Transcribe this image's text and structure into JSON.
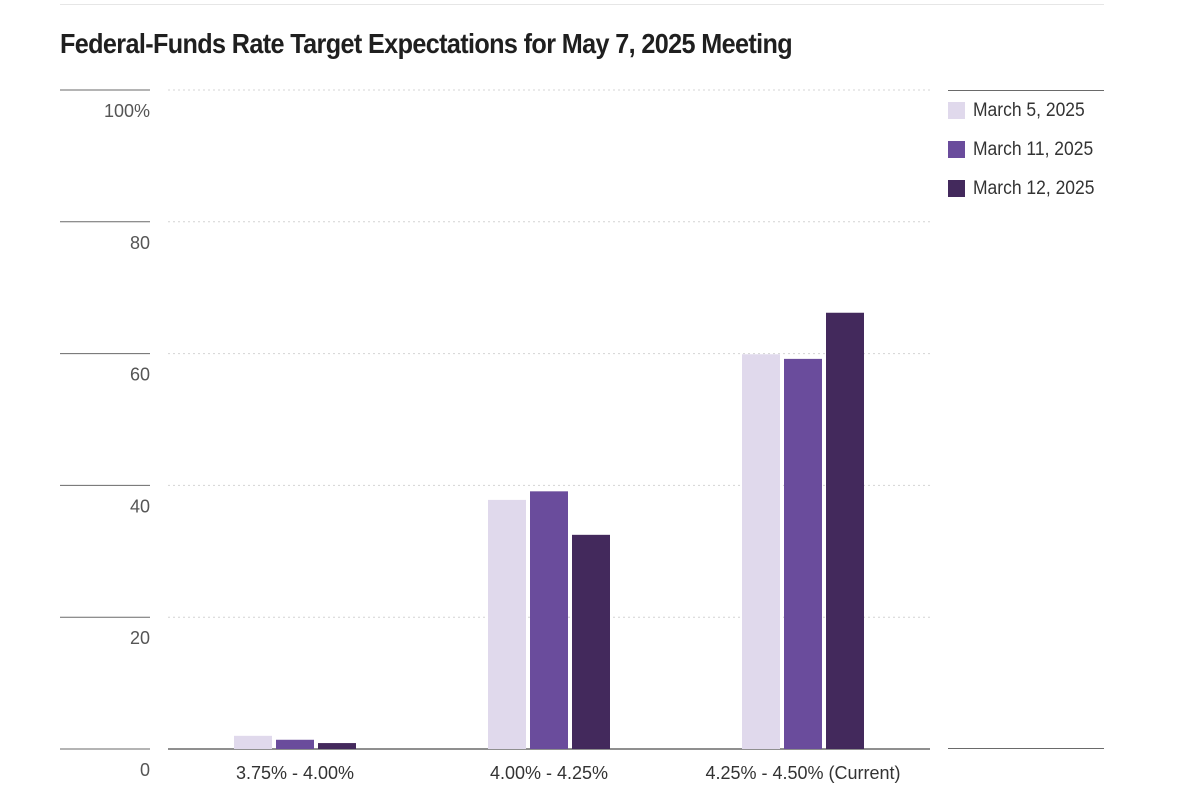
{
  "title": "Federal-Funds Rate Target Expectations for May 7, 2025 Meeting",
  "chart_data": {
    "type": "bar",
    "title": "Federal-Funds Rate Target Expectations for May 7, 2025 Meeting",
    "categories": [
      "3.75% - 4.00%",
      "4.00% - 4.25%",
      "4.25% - 4.50% (Current)"
    ],
    "series": [
      {
        "name": "March 5, 2025",
        "color": "#e0d9ec",
        "values": [
          2.0,
          37.8,
          59.9
        ]
      },
      {
        "name": "March 11, 2025",
        "color": "#6a4c9c",
        "values": [
          1.4,
          39.1,
          59.2
        ]
      },
      {
        "name": "March 12, 2025",
        "color": "#43295c",
        "values": [
          0.9,
          32.5,
          66.2
        ]
      }
    ],
    "yticks": [
      0,
      20,
      40,
      60,
      80,
      100
    ],
    "ytick_labels": [
      "0",
      "20",
      "40",
      "60",
      "80",
      "100%"
    ],
    "ylim": [
      0,
      100
    ],
    "xlabel": "",
    "ylabel": "",
    "grid": true,
    "legend_position": "top-right"
  }
}
